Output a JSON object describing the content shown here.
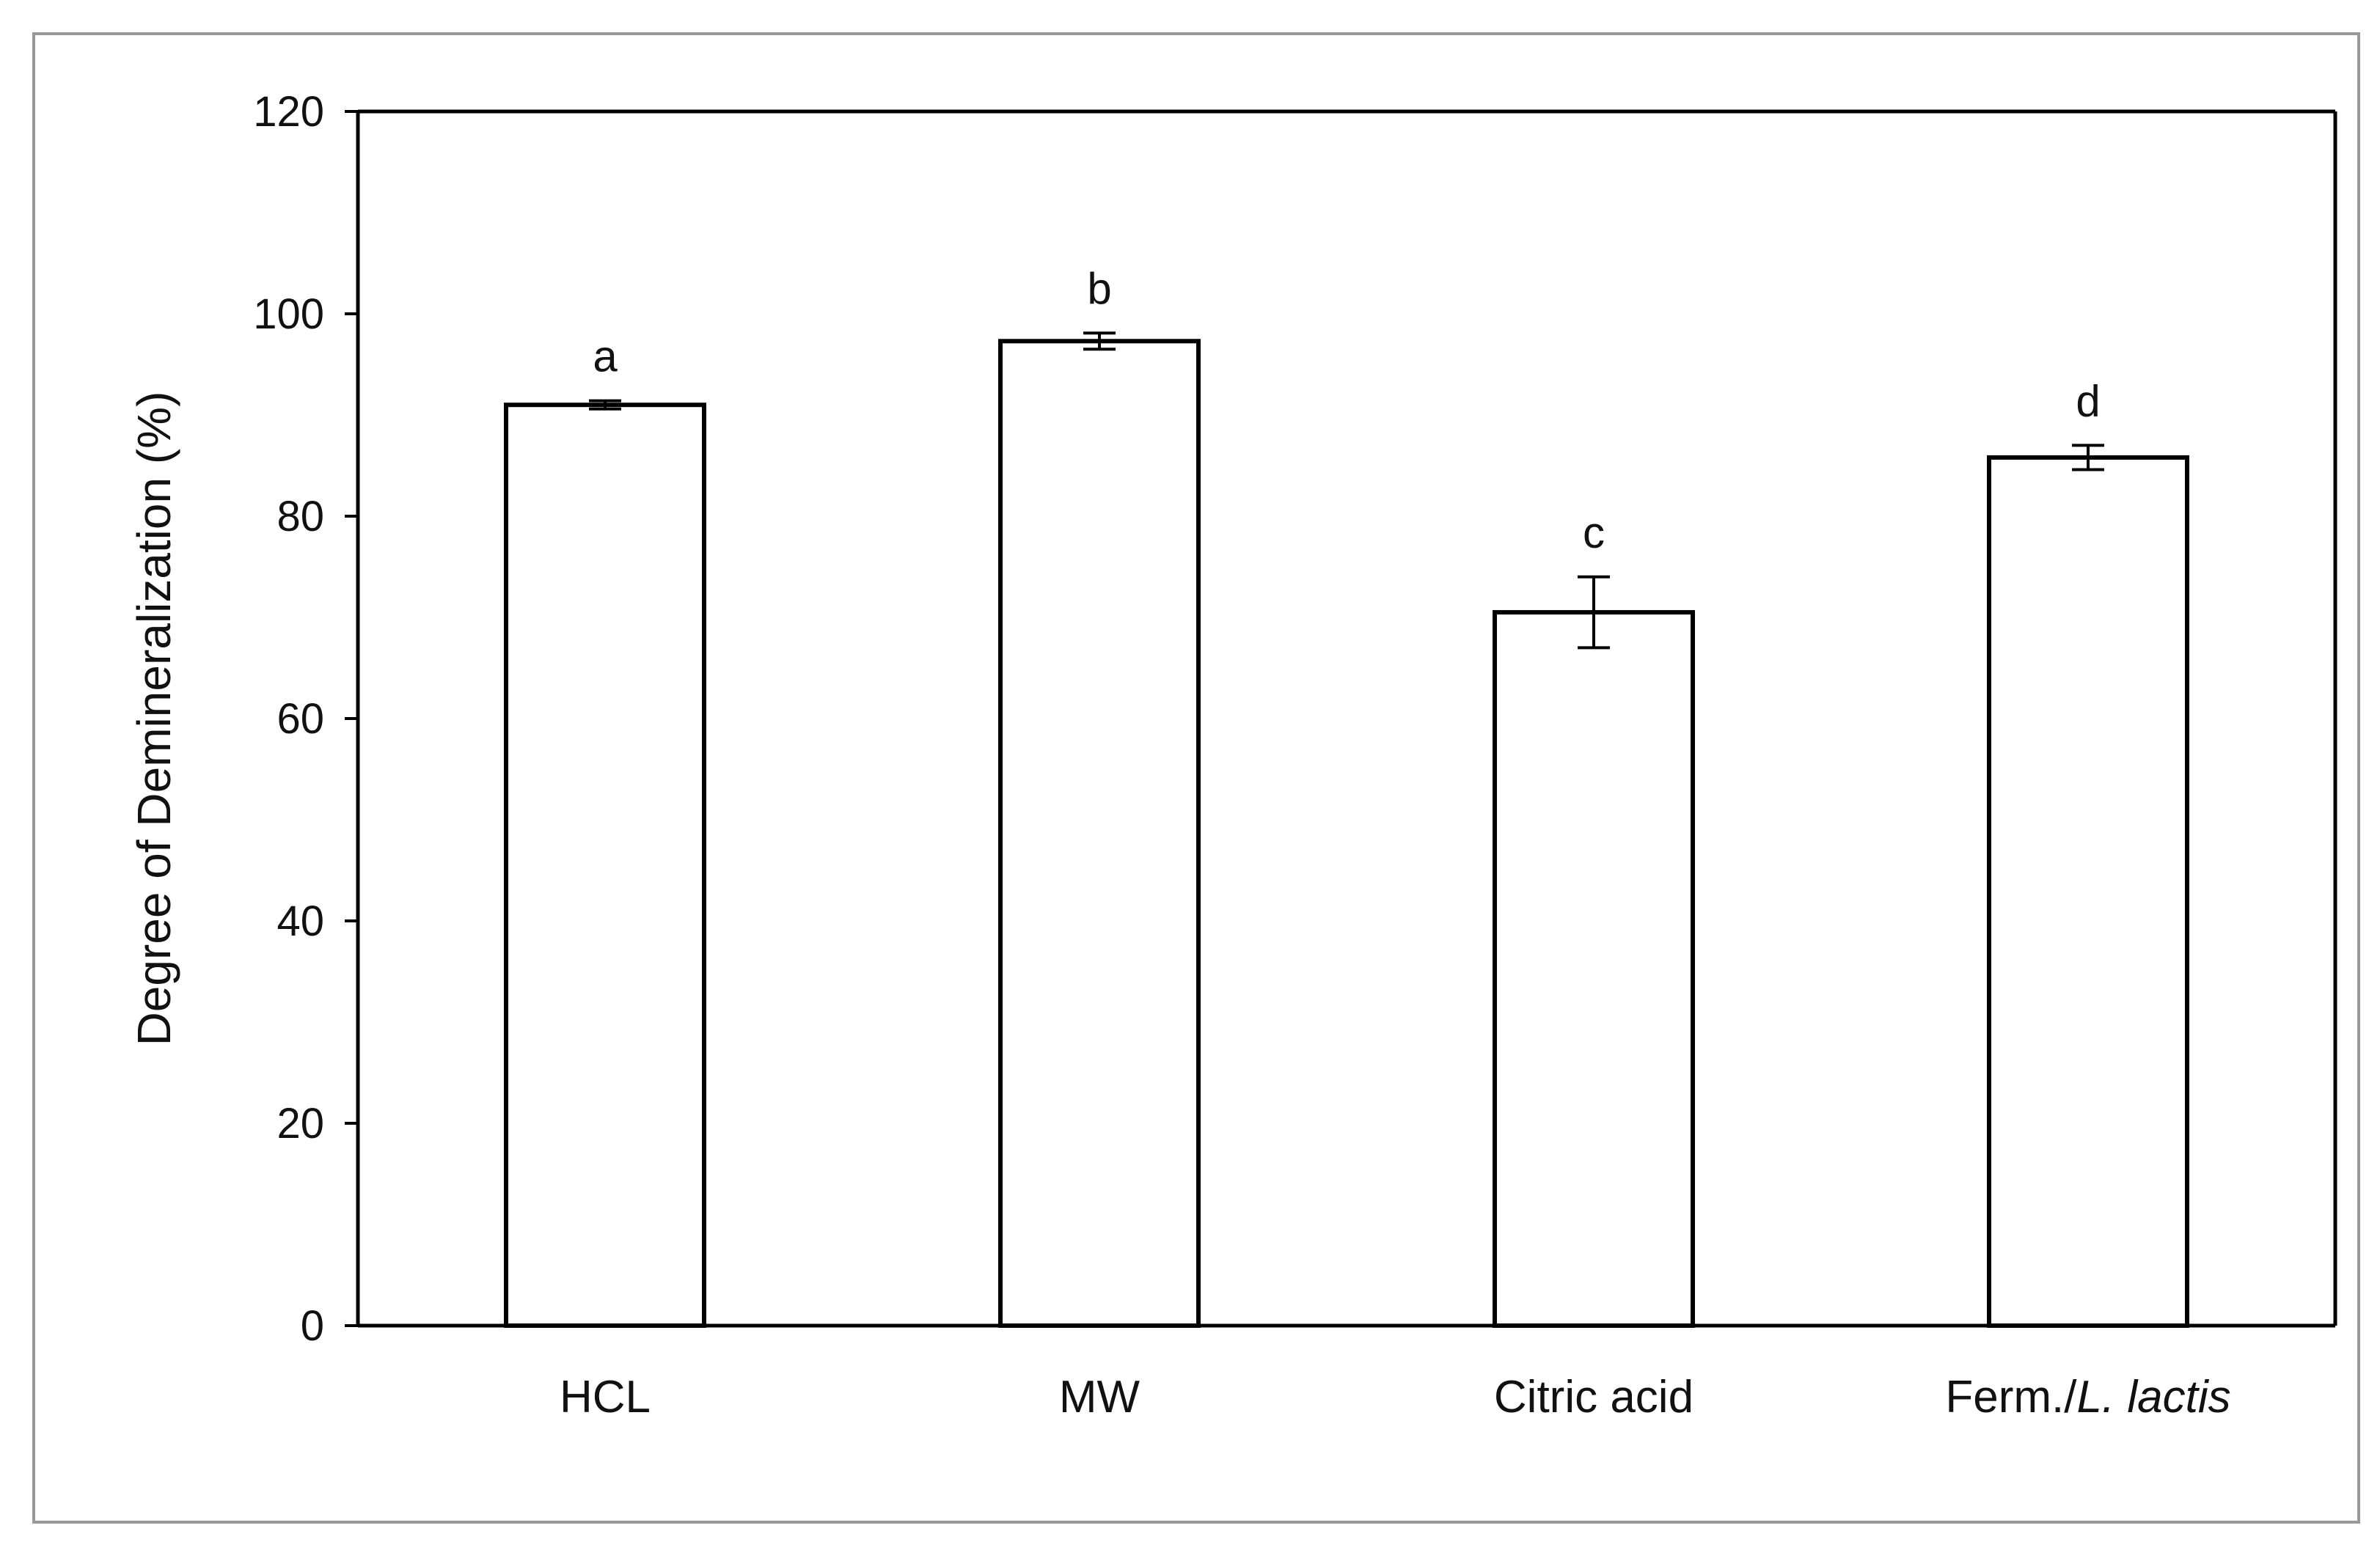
{
  "chart_data": {
    "type": "bar",
    "categories": [
      "HCL",
      "MW",
      "Citric acid",
      "Ferm./L. lactis"
    ],
    "category_parts": [
      {
        "plain": "HCL",
        "italic": ""
      },
      {
        "plain": "MW",
        "italic": ""
      },
      {
        "plain": "Citric acid",
        "italic": ""
      },
      {
        "plain": "Ferm./",
        "italic": "L. lactis"
      }
    ],
    "values": [
      91,
      97.3,
      70.5,
      85.8
    ],
    "errors": [
      0.4,
      0.8,
      3.5,
      1.2
    ],
    "significance_labels": [
      "a",
      "b",
      "c",
      "d"
    ],
    "title": "",
    "xlabel": "",
    "ylabel": "Degree of Demineralization (%)",
    "ylim": [
      0,
      120
    ],
    "yticks": [
      0,
      20,
      40,
      60,
      80,
      100,
      120
    ],
    "ytick_labels": [
      "0",
      "20",
      "40",
      "60",
      "80",
      "100",
      "120"
    ],
    "grid": false,
    "legend": "none",
    "colors": {
      "bar_fill": "#ffffff",
      "bar_edge": "#000000",
      "frame": "#999999"
    }
  }
}
